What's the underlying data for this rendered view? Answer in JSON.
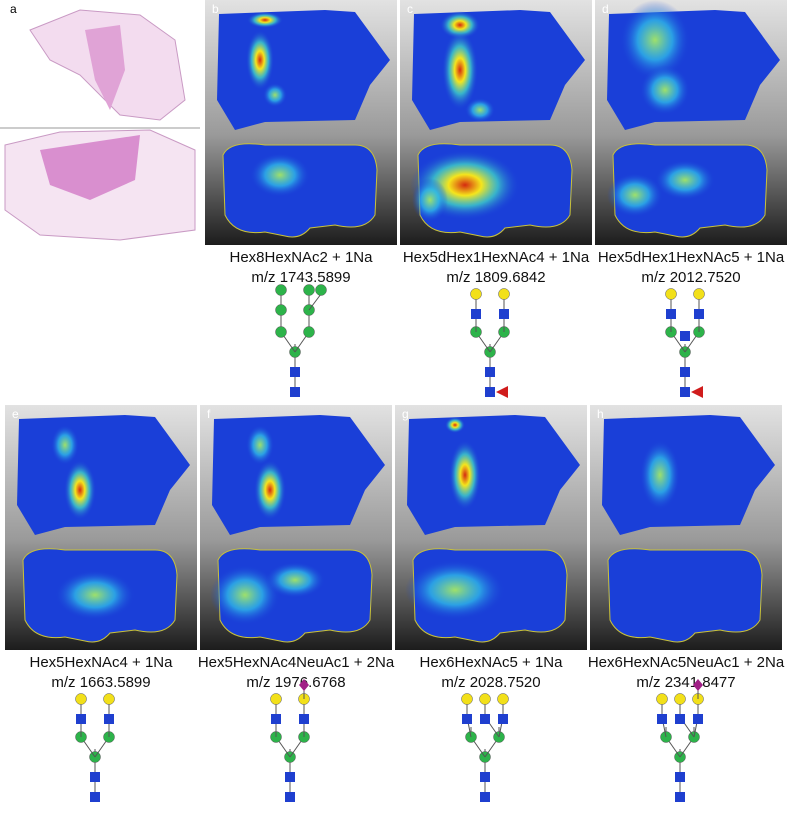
{
  "panel_a": {
    "letter": "a"
  },
  "panels": [
    {
      "letter": "b",
      "name": "Hex8HexNAc2 + 1Na",
      "mz": "m/z 1743.5899"
    },
    {
      "letter": "c",
      "name": "Hex5dHex1HexNAc4 + 1Na",
      "mz": "m/z 1809.6842"
    },
    {
      "letter": "d",
      "name": "Hex5dHex1HexNAc5 + 1Na",
      "mz": "m/z 2012.7520"
    },
    {
      "letter": "e",
      "name": "Hex5HexNAc4 + 1Na",
      "mz": "m/z 1663.5899"
    },
    {
      "letter": "f",
      "name": "Hex5HexNAc4NeuAc1 + 2Na",
      "mz": "m/z 1976.6768"
    },
    {
      "letter": "g",
      "name": "Hex6HexNAc5 + 1Na",
      "mz": "m/z 2028.7520"
    },
    {
      "letter": "h",
      "name": "Hex6HexNAc5NeuAc1 + 2Na",
      "mz": "m/z 2341.8477"
    }
  ]
}
